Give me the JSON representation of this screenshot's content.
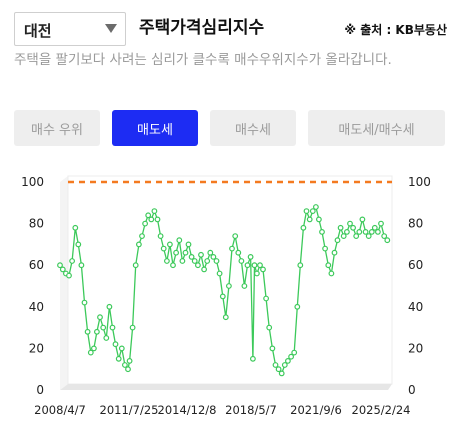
{
  "header": {
    "region_value": "대전",
    "title": "주택가격심리지수",
    "source": "※ 출처 : KB부동산"
  },
  "description": "주택을 팔기보다 사려는 심리가 클수록 매수우위지수가 올라갑니다.",
  "tabs": [
    {
      "label": "매수 우위",
      "active": false
    },
    {
      "label": "매도세",
      "active": true
    },
    {
      "label": "매수세",
      "active": false
    },
    {
      "label": "매도세/매수세",
      "active": false
    }
  ],
  "colors": {
    "accent": "#1d2cf3",
    "series": "#3cc95a",
    "reference_line": "#f47a20"
  },
  "chart_data": {
    "type": "line",
    "title": "",
    "xlabel": "",
    "ylabel": "",
    "ylim": [
      0,
      100
    ],
    "yticks": [
      0,
      20,
      40,
      60,
      80,
      100
    ],
    "x_ticks": [
      "2008/4/7",
      "2011/7/25",
      "2014/12/8",
      "2018/5/7",
      "2021/9/6",
      "2025/2/24"
    ],
    "x_range": [
      "2008-04-07",
      "2026-02-01"
    ],
    "reference_line": {
      "value": 100,
      "style": "dashed"
    },
    "series": [
      {
        "points": [
          [
            "2008-04-07",
            60
          ],
          [
            "2008-06-01",
            58
          ],
          [
            "2008-08-01",
            56
          ],
          [
            "2008-10-01",
            55
          ],
          [
            "2008-12-01",
            62
          ],
          [
            "2009-02-01",
            78
          ],
          [
            "2009-04-01",
            70
          ],
          [
            "2009-06-01",
            60
          ],
          [
            "2009-08-01",
            42
          ],
          [
            "2009-10-01",
            28
          ],
          [
            "2009-12-01",
            18
          ],
          [
            "2010-02-01",
            20
          ],
          [
            "2010-04-01",
            28
          ],
          [
            "2010-06-01",
            35
          ],
          [
            "2010-08-01",
            30
          ],
          [
            "2010-10-01",
            25
          ],
          [
            "2010-12-01",
            40
          ],
          [
            "2011-02-01",
            30
          ],
          [
            "2011-04-01",
            22
          ],
          [
            "2011-06-01",
            15
          ],
          [
            "2011-08-01",
            20
          ],
          [
            "2011-10-01",
            12
          ],
          [
            "2011-12-01",
            10
          ],
          [
            "2012-01-01",
            14
          ],
          [
            "2012-03-01",
            30
          ],
          [
            "2012-05-01",
            60
          ],
          [
            "2012-07-01",
            70
          ],
          [
            "2012-09-01",
            74
          ],
          [
            "2012-11-01",
            80
          ],
          [
            "2013-01-01",
            84
          ],
          [
            "2013-03-01",
            82
          ],
          [
            "2013-05-01",
            86
          ],
          [
            "2013-07-01",
            82
          ],
          [
            "2013-09-01",
            74
          ],
          [
            "2013-11-01",
            68
          ],
          [
            "2014-01-01",
            62
          ],
          [
            "2014-03-01",
            70
          ],
          [
            "2014-05-01",
            60
          ],
          [
            "2014-07-01",
            66
          ],
          [
            "2014-09-01",
            72
          ],
          [
            "2014-11-01",
            62
          ],
          [
            "2015-01-01",
            66
          ],
          [
            "2015-03-01",
            70
          ],
          [
            "2015-05-01",
            64
          ],
          [
            "2015-07-01",
            62
          ],
          [
            "2015-09-01",
            60
          ],
          [
            "2015-11-01",
            65
          ],
          [
            "2016-01-01",
            58
          ],
          [
            "2016-03-01",
            62
          ],
          [
            "2016-05-01",
            66
          ],
          [
            "2016-07-01",
            64
          ],
          [
            "2016-09-01",
            62
          ],
          [
            "2016-11-01",
            56
          ],
          [
            "2017-01-01",
            45
          ],
          [
            "2017-03-01",
            35
          ],
          [
            "2017-05-01",
            50
          ],
          [
            "2017-07-01",
            68
          ],
          [
            "2017-09-01",
            74
          ],
          [
            "2017-11-01",
            66
          ],
          [
            "2018-01-01",
            62
          ],
          [
            "2018-03-01",
            50
          ],
          [
            "2018-05-01",
            60
          ],
          [
            "2018-07-01",
            64
          ],
          [
            "2018-08-15",
            15
          ],
          [
            "2018-09-15",
            60
          ],
          [
            "2018-11-01",
            56
          ],
          [
            "2019-01-01",
            60
          ],
          [
            "2019-03-01",
            58
          ],
          [
            "2019-05-01",
            44
          ],
          [
            "2019-07-01",
            30
          ],
          [
            "2019-09-01",
            20
          ],
          [
            "2019-11-01",
            12
          ],
          [
            "2020-01-01",
            10
          ],
          [
            "2020-03-01",
            8
          ],
          [
            "2020-05-01",
            12
          ],
          [
            "2020-07-01",
            14
          ],
          [
            "2020-09-01",
            16
          ],
          [
            "2020-11-01",
            18
          ],
          [
            "2021-01-01",
            40
          ],
          [
            "2021-03-01",
            60
          ],
          [
            "2021-05-01",
            78
          ],
          [
            "2021-07-01",
            86
          ],
          [
            "2021-09-01",
            82
          ],
          [
            "2021-11-01",
            86
          ],
          [
            "2022-01-01",
            88
          ],
          [
            "2022-03-01",
            82
          ],
          [
            "2022-05-01",
            76
          ],
          [
            "2022-07-01",
            68
          ],
          [
            "2022-09-01",
            60
          ],
          [
            "2022-11-01",
            56
          ],
          [
            "2023-01-01",
            66
          ],
          [
            "2023-03-01",
            72
          ],
          [
            "2023-05-01",
            78
          ],
          [
            "2023-07-01",
            74
          ],
          [
            "2023-09-01",
            76
          ],
          [
            "2023-11-01",
            80
          ],
          [
            "2024-01-01",
            78
          ],
          [
            "2024-03-01",
            74
          ],
          [
            "2024-05-01",
            76
          ],
          [
            "2024-07-01",
            82
          ],
          [
            "2024-09-01",
            76
          ],
          [
            "2024-11-01",
            74
          ],
          [
            "2025-01-01",
            76
          ],
          [
            "2025-03-01",
            78
          ],
          [
            "2025-05-01",
            76
          ],
          [
            "2025-07-01",
            80
          ],
          [
            "2025-09-01",
            74
          ],
          [
            "2025-11-01",
            72
          ]
        ]
      }
    ]
  }
}
